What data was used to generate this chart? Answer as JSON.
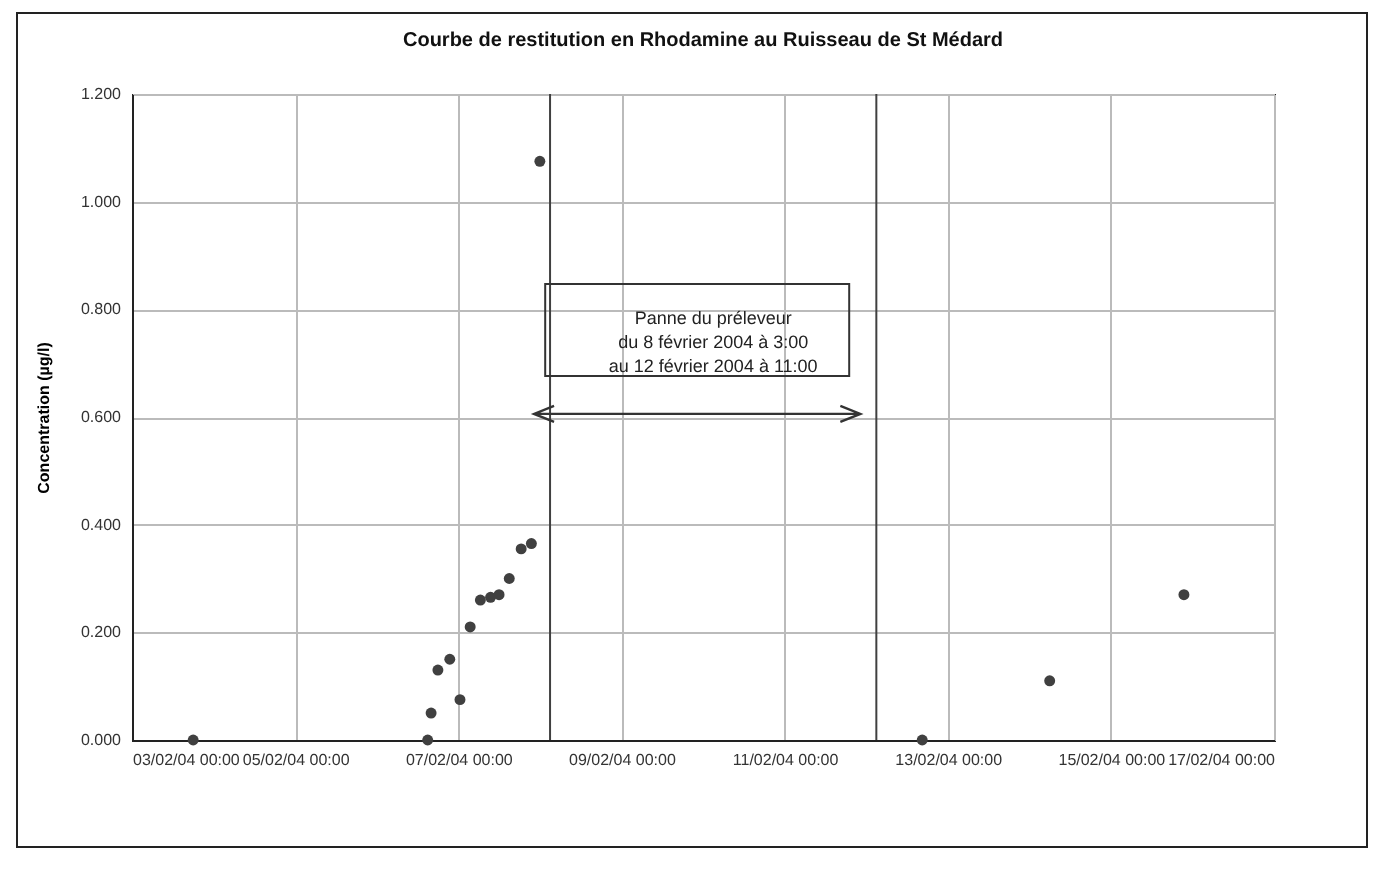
{
  "chart_data": {
    "type": "scatter",
    "title": "Courbe de restitution en Rhodamine au Ruisseau de St Médard",
    "ylabel": "Concentration (µg/l)",
    "x": [
      "2004-02-03T18:00",
      "2004-02-06T15:00",
      "2004-02-06T16:00",
      "2004-02-06T18:00",
      "2004-02-06T21:30",
      "2004-02-07T00:30",
      "2004-02-07T03:30",
      "2004-02-07T06:30",
      "2004-02-07T09:30",
      "2004-02-07T12:00",
      "2004-02-07T15:00",
      "2004-02-07T18:30",
      "2004-02-07T21:30",
      "2004-02-08T00:00",
      "2004-02-12T16:30",
      "2004-02-14T06:00",
      "2004-02-15T21:30"
    ],
    "series": [
      {
        "color": "#404040",
        "values": [
          0,
          0,
          0.05,
          0.13,
          0.15,
          0.075,
          0.21,
          0.26,
          0.265,
          0.27,
          0.3,
          0.355,
          0.365,
          1.075,
          0,
          0.11,
          0.27
        ]
      }
    ],
    "xlim": [
      "2004-02-03",
      "2004-02-17"
    ],
    "xticks": [
      {
        "value": "2004-02-03",
        "label": "03/02/04 00:00"
      },
      {
        "value": "2004-02-05",
        "label": "05/02/04 00:00"
      },
      {
        "value": "2004-02-07",
        "label": "07/02/04 00:00"
      },
      {
        "value": "2004-02-09",
        "label": "09/02/04 00:00"
      },
      {
        "value": "2004-02-11",
        "label": "11/02/04 00:00"
      },
      {
        "value": "2004-02-13",
        "label": "13/02/04 00:00"
      },
      {
        "value": "2004-02-15",
        "label": "15/02/04 00:00"
      },
      {
        "value": "2004-02-17",
        "label": "17/02/04 00:00"
      }
    ],
    "ylim": [
      0,
      1.2
    ],
    "yticks": [
      {
        "value": 0,
        "label": "0.000"
      },
      {
        "value": 0.2,
        "label": "0.200"
      },
      {
        "value": 0.4,
        "label": "0.400"
      },
      {
        "value": 0.6,
        "label": "0.600"
      },
      {
        "value": 0.8,
        "label": "0.800"
      },
      {
        "value": 1,
        "label": "1.000"
      },
      {
        "value": 1.2,
        "label": "1.200"
      }
    ],
    "ref_lines": [
      {
        "axis": "x",
        "value": "2004-02-08T03:00",
        "color": "#404040"
      },
      {
        "axis": "x",
        "value": "2004-02-12T03:00",
        "color": "#404040"
      }
    ],
    "annotations": [
      "Panne du préleveur\ndu 8 février 2004 à 3:00\nau 12 février 2004 à 11:00"
    ],
    "grid": true,
    "marker": "circle"
  }
}
